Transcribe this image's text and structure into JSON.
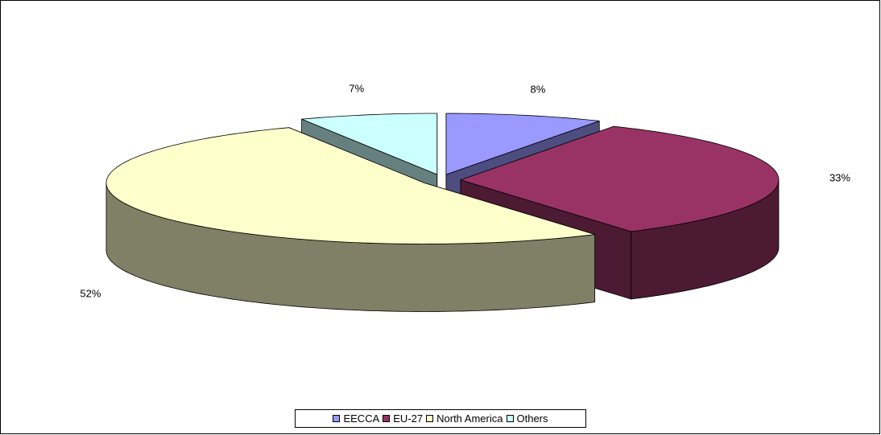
{
  "chart_data": {
    "type": "pie",
    "title": "",
    "three_d": true,
    "exploded": true,
    "slices": [
      {
        "name": "EECCA",
        "value": 8,
        "label": "8%",
        "color": "#9999ff",
        "side_color": "#4d4d80"
      },
      {
        "name": "EU-27",
        "value": 33,
        "label": "33%",
        "color": "#993366",
        "side_color": "#4d1a33"
      },
      {
        "name": "North America",
        "value": 52,
        "label": "52%",
        "color": "#ffffcc",
        "side_color": "#808066"
      },
      {
        "name": "Others",
        "value": 7,
        "label": "7%",
        "color": "#ccffff",
        "side_color": "#668080"
      }
    ],
    "legend": {
      "position": "bottom",
      "items": [
        "EECCA",
        "EU-27",
        "North America",
        "Others"
      ]
    }
  }
}
